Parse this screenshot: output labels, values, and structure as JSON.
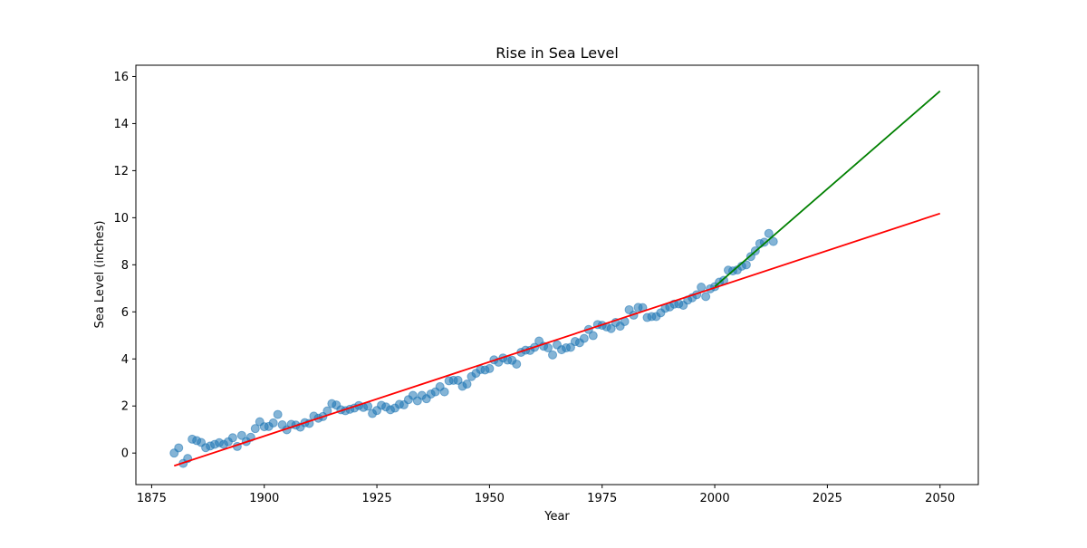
{
  "chart_data": {
    "type": "scatter",
    "title": "Rise in Sea Level",
    "xlabel": "Year",
    "ylabel": "Sea Level (inches)",
    "xlim": [
      1871.5,
      2058.5
    ],
    "ylim": [
      -1.34,
      16.48
    ],
    "x_ticks": [
      1875,
      1900,
      1925,
      1950,
      1975,
      2000,
      2025,
      2050
    ],
    "y_ticks": [
      0,
      2,
      4,
      6,
      8,
      10,
      12,
      14,
      16
    ],
    "grid": false,
    "series": [
      {
        "kind": "points",
        "color": "#1f77b4",
        "opacity": 0.55,
        "points": [
          [
            1880,
            0.0
          ],
          [
            1881,
            0.22
          ],
          [
            1882,
            -0.44
          ],
          [
            1883,
            -0.23
          ],
          [
            1884,
            0.59
          ],
          [
            1885,
            0.53
          ],
          [
            1886,
            0.45
          ],
          [
            1887,
            0.23
          ],
          [
            1888,
            0.3
          ],
          [
            1889,
            0.37
          ],
          [
            1890,
            0.44
          ],
          [
            1891,
            0.37
          ],
          [
            1892,
            0.48
          ],
          [
            1893,
            0.65
          ],
          [
            1894,
            0.28
          ],
          [
            1895,
            0.75
          ],
          [
            1896,
            0.49
          ],
          [
            1897,
            0.67
          ],
          [
            1898,
            1.04
          ],
          [
            1899,
            1.33
          ],
          [
            1900,
            1.12
          ],
          [
            1901,
            1.13
          ],
          [
            1902,
            1.28
          ],
          [
            1903,
            1.64
          ],
          [
            1904,
            1.2
          ],
          [
            1905,
            0.99
          ],
          [
            1906,
            1.22
          ],
          [
            1907,
            1.19
          ],
          [
            1908,
            1.1
          ],
          [
            1909,
            1.29
          ],
          [
            1910,
            1.26
          ],
          [
            1911,
            1.57
          ],
          [
            1912,
            1.48
          ],
          [
            1913,
            1.55
          ],
          [
            1914,
            1.79
          ],
          [
            1915,
            2.1
          ],
          [
            1916,
            2.04
          ],
          [
            1917,
            1.84
          ],
          [
            1918,
            1.8
          ],
          [
            1919,
            1.86
          ],
          [
            1920,
            1.91
          ],
          [
            1921,
            2.02
          ],
          [
            1922,
            1.94
          ],
          [
            1923,
            1.99
          ],
          [
            1924,
            1.68
          ],
          [
            1925,
            1.81
          ],
          [
            1926,
            2.03
          ],
          [
            1927,
            1.96
          ],
          [
            1928,
            1.84
          ],
          [
            1929,
            1.91
          ],
          [
            1930,
            2.07
          ],
          [
            1931,
            2.05
          ],
          [
            1932,
            2.27
          ],
          [
            1933,
            2.45
          ],
          [
            1934,
            2.22
          ],
          [
            1935,
            2.45
          ],
          [
            1936,
            2.31
          ],
          [
            1937,
            2.51
          ],
          [
            1938,
            2.6
          ],
          [
            1939,
            2.82
          ],
          [
            1940,
            2.6
          ],
          [
            1941,
            3.07
          ],
          [
            1942,
            3.09
          ],
          [
            1943,
            3.09
          ],
          [
            1944,
            2.84
          ],
          [
            1945,
            2.93
          ],
          [
            1946,
            3.25
          ],
          [
            1947,
            3.39
          ],
          [
            1948,
            3.55
          ],
          [
            1949,
            3.53
          ],
          [
            1950,
            3.59
          ],
          [
            1951,
            3.96
          ],
          [
            1952,
            3.86
          ],
          [
            1953,
            4.04
          ],
          [
            1954,
            3.95
          ],
          [
            1955,
            3.94
          ],
          [
            1956,
            3.78
          ],
          [
            1957,
            4.28
          ],
          [
            1958,
            4.37
          ],
          [
            1959,
            4.36
          ],
          [
            1960,
            4.49
          ],
          [
            1961,
            4.76
          ],
          [
            1962,
            4.54
          ],
          [
            1963,
            4.47
          ],
          [
            1964,
            4.17
          ],
          [
            1965,
            4.6
          ],
          [
            1966,
            4.39
          ],
          [
            1967,
            4.47
          ],
          [
            1968,
            4.49
          ],
          [
            1969,
            4.74
          ],
          [
            1970,
            4.69
          ],
          [
            1971,
            4.87
          ],
          [
            1972,
            5.25
          ],
          [
            1973,
            4.99
          ],
          [
            1974,
            5.46
          ],
          [
            1975,
            5.43
          ],
          [
            1976,
            5.36
          ],
          [
            1977,
            5.29
          ],
          [
            1978,
            5.55
          ],
          [
            1979,
            5.39
          ],
          [
            1980,
            5.59
          ],
          [
            1981,
            6.09
          ],
          [
            1982,
            5.86
          ],
          [
            1983,
            6.19
          ],
          [
            1984,
            6.18
          ],
          [
            1985,
            5.76
          ],
          [
            1986,
            5.8
          ],
          [
            1987,
            5.8
          ],
          [
            1988,
            5.96
          ],
          [
            1989,
            6.15
          ],
          [
            1990,
            6.21
          ],
          [
            1991,
            6.33
          ],
          [
            1992,
            6.34
          ],
          [
            1993,
            6.28
          ],
          [
            1994,
            6.5
          ],
          [
            1995,
            6.6
          ],
          [
            1996,
            6.73
          ],
          [
            1997,
            7.05
          ],
          [
            1998,
            6.65
          ],
          [
            1999,
            6.98
          ],
          [
            2000,
            7.07
          ],
          [
            2001,
            7.26
          ],
          [
            2002,
            7.34
          ],
          [
            2003,
            7.77
          ],
          [
            2004,
            7.74
          ],
          [
            2005,
            7.78
          ],
          [
            2006,
            7.94
          ],
          [
            2007,
            8.0
          ],
          [
            2008,
            8.35
          ],
          [
            2009,
            8.59
          ],
          [
            2010,
            8.9
          ],
          [
            2011,
            8.96
          ],
          [
            2012,
            9.33
          ],
          [
            2013,
            8.99
          ]
        ]
      },
      {
        "kind": "line",
        "color": "#ff0000",
        "points": [
          [
            1880,
            -0.54
          ],
          [
            2050,
            10.18
          ]
        ]
      },
      {
        "kind": "line",
        "color": "#008000",
        "points": [
          [
            2000,
            7.07
          ],
          [
            2050,
            15.38
          ]
        ]
      }
    ]
  }
}
